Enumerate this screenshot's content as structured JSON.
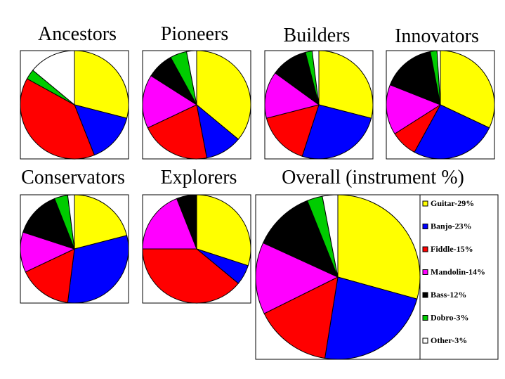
{
  "chart_data": [
    {
      "type": "pie",
      "title": "Ancestors",
      "categories": [
        "Guitar",
        "Banjo",
        "Fiddle",
        "Mandolin",
        "Bass",
        "Dobro",
        "Other"
      ],
      "values": [
        29,
        15,
        39,
        0,
        0,
        3,
        14
      ]
    },
    {
      "type": "pie",
      "title": "Pioneers",
      "categories": [
        "Guitar",
        "Banjo",
        "Fiddle",
        "Mandolin",
        "Bass",
        "Dobro",
        "Other"
      ],
      "values": [
        36,
        11,
        21,
        16,
        8,
        5,
        3
      ]
    },
    {
      "type": "pie",
      "title": "Builders",
      "categories": [
        "Guitar",
        "Banjo",
        "Fiddle",
        "Mandolin",
        "Bass",
        "Dobro",
        "Other"
      ],
      "values": [
        29,
        26,
        16,
        14,
        11,
        2,
        2
      ]
    },
    {
      "type": "pie",
      "title": "Innovators",
      "categories": [
        "Guitar",
        "Banjo",
        "Fiddle",
        "Mandolin",
        "Bass",
        "Dobro",
        "Other"
      ],
      "values": [
        32,
        26,
        8,
        15,
        16,
        2,
        1
      ]
    },
    {
      "type": "pie",
      "title": "Conservators",
      "categories": [
        "Guitar",
        "Banjo",
        "Fiddle",
        "Mandolin",
        "Bass",
        "Dobro",
        "Other"
      ],
      "values": [
        21,
        31,
        16,
        12,
        14,
        4,
        2
      ]
    },
    {
      "type": "pie",
      "title": "Explorers",
      "categories": [
        "Guitar",
        "Banjo",
        "Fiddle",
        "Mandolin",
        "Bass",
        "Dobro",
        "Other"
      ],
      "values": [
        30,
        6,
        39,
        19,
        6,
        0,
        0
      ]
    },
    {
      "type": "pie",
      "title": "Overall (instrument %)",
      "categories": [
        "Guitar",
        "Banjo",
        "Fiddle",
        "Mandolin",
        "Bass",
        "Dobro",
        "Other"
      ],
      "values": [
        29,
        23,
        15,
        14,
        12,
        3,
        3
      ],
      "legend": [
        "Guitar-29%",
        "Banjo-23%",
        "Fiddle-15%",
        "Mandolin-14%",
        "Bass-12%",
        "Dobro-3%",
        "Other-3%"
      ],
      "legend_position": "right"
    }
  ],
  "colors": [
    "#ffff00",
    "#0000ff",
    "#ff0000",
    "#ff00ff",
    "#000000",
    "#00cc00",
    "#ffffff"
  ]
}
